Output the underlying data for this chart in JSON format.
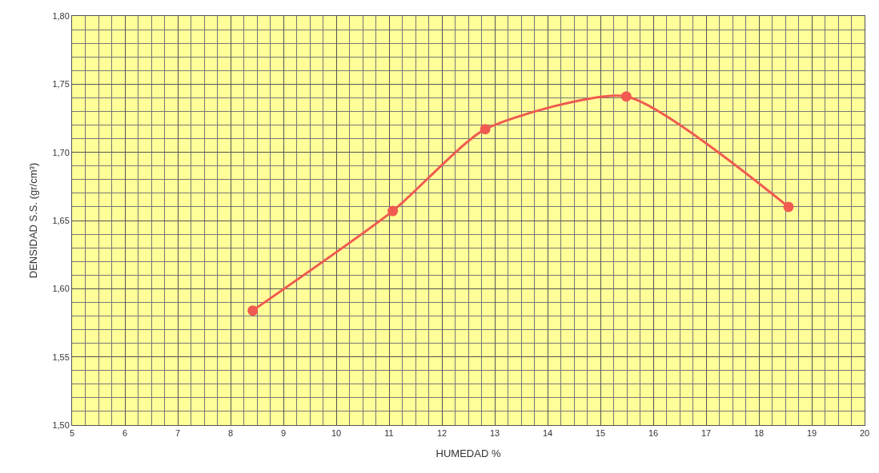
{
  "chart_data": {
    "type": "line",
    "xlabel": "HUMEDAD %",
    "ylabel": "DENSIDAD S.S. (gr/cm³)",
    "x": [
      8.42,
      11.07,
      12.82,
      15.49,
      18.56
    ],
    "series": [
      {
        "color": "#f05a50",
        "values": [
          1.584,
          1.657,
          1.717,
          1.741,
          1.66
        ]
      }
    ],
    "xlim": [
      5,
      20
    ],
    "xticks": [
      5,
      6,
      7,
      8,
      9,
      10,
      11,
      12,
      13,
      14,
      15,
      16,
      17,
      18,
      19,
      20
    ],
    "ylim": [
      1.5,
      1.8
    ],
    "yticks": [
      {
        "value": 1.5,
        "label": "1,50"
      },
      {
        "value": 1.55,
        "label": "1,55"
      },
      {
        "value": 1.6,
        "label": "1,60"
      },
      {
        "value": 1.65,
        "label": "1,65"
      },
      {
        "value": 1.7,
        "label": "1,70"
      },
      {
        "value": 1.75,
        "label": "1,75"
      },
      {
        "value": 1.8,
        "label": "1,80"
      }
    ],
    "grid": true,
    "marker": "circle",
    "line_style": "solid",
    "legend": false
  }
}
